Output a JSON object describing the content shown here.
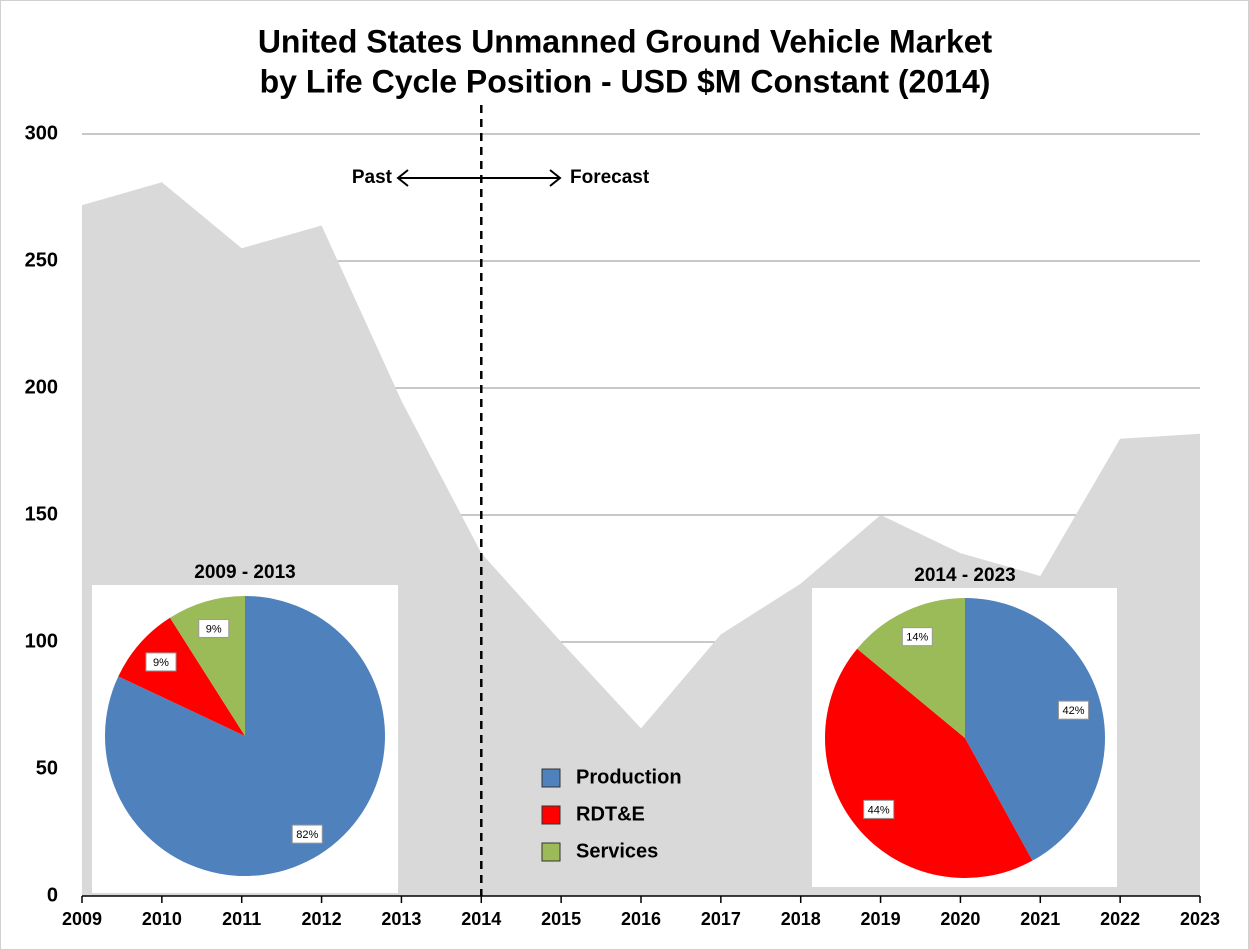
{
  "chart_data": [
    {
      "type": "area",
      "title": [
        "United States Unmanned Ground Vehicle Market",
        "by Life Cycle Position - USD $M Constant (2014)"
      ],
      "x": [
        2009,
        2010,
        2011,
        2012,
        2013,
        2014,
        2015,
        2016,
        2017,
        2018,
        2019,
        2020,
        2021,
        2022,
        2023
      ],
      "values": [
        272,
        281,
        255,
        264,
        195,
        135,
        100,
        66,
        103,
        123,
        150,
        135,
        126,
        180,
        182
      ],
      "color": "#d9d9d9",
      "xlim": [
        2009,
        2023
      ],
      "xticks": [
        2009,
        2010,
        2011,
        2012,
        2013,
        2014,
        2015,
        2016,
        2017,
        2018,
        2019,
        2020,
        2021,
        2022,
        2023
      ],
      "ylim": [
        0,
        300
      ],
      "yticks": [
        0,
        50,
        100,
        150,
        200,
        250,
        300
      ],
      "grid": true,
      "divider_x": 2014,
      "annotations": [
        "Past",
        "Forecast"
      ]
    },
    {
      "type": "pie",
      "title": "2009 - 2013",
      "categories": [
        "Production",
        "RDT&E",
        "Services"
      ],
      "values": [
        82,
        9,
        9
      ],
      "value_labels": [
        "82%",
        "9%",
        "9%"
      ],
      "colors": [
        "#4f81bd",
        "#ff0000",
        "#9bbb59"
      ]
    },
    {
      "type": "pie",
      "title": "2014 - 2023",
      "categories": [
        "Production",
        "RDT&E",
        "Services"
      ],
      "values": [
        42,
        44,
        14
      ],
      "value_labels": [
        "42%",
        "44%",
        "14%"
      ],
      "colors": [
        "#4f81bd",
        "#ff0000",
        "#9bbb59"
      ]
    }
  ]
}
